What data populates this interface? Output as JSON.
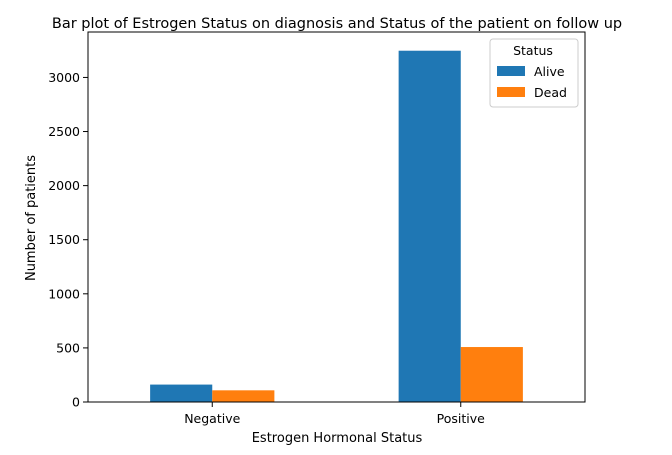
{
  "chart_data": {
    "type": "bar",
    "title": "Bar plot of Estrogen Status on diagnosis and Status of the patient on follow up",
    "xlabel": "Estrogen Hormonal Status",
    "ylabel": "Number of patients",
    "categories": [
      "Negative",
      "Positive"
    ],
    "series": [
      {
        "name": "Alive",
        "values": [
          161,
          3247
        ],
        "color": "#1f77b4"
      },
      {
        "name": "Dead",
        "values": [
          108,
          508
        ],
        "color": "#ff7f0e"
      }
    ],
    "ylim": [
      0,
      3420
    ],
    "yticks": [
      0,
      500,
      1000,
      1500,
      2000,
      2500,
      3000
    ],
    "grid": false,
    "legend": {
      "title": "Status",
      "placement": "top-right"
    }
  }
}
